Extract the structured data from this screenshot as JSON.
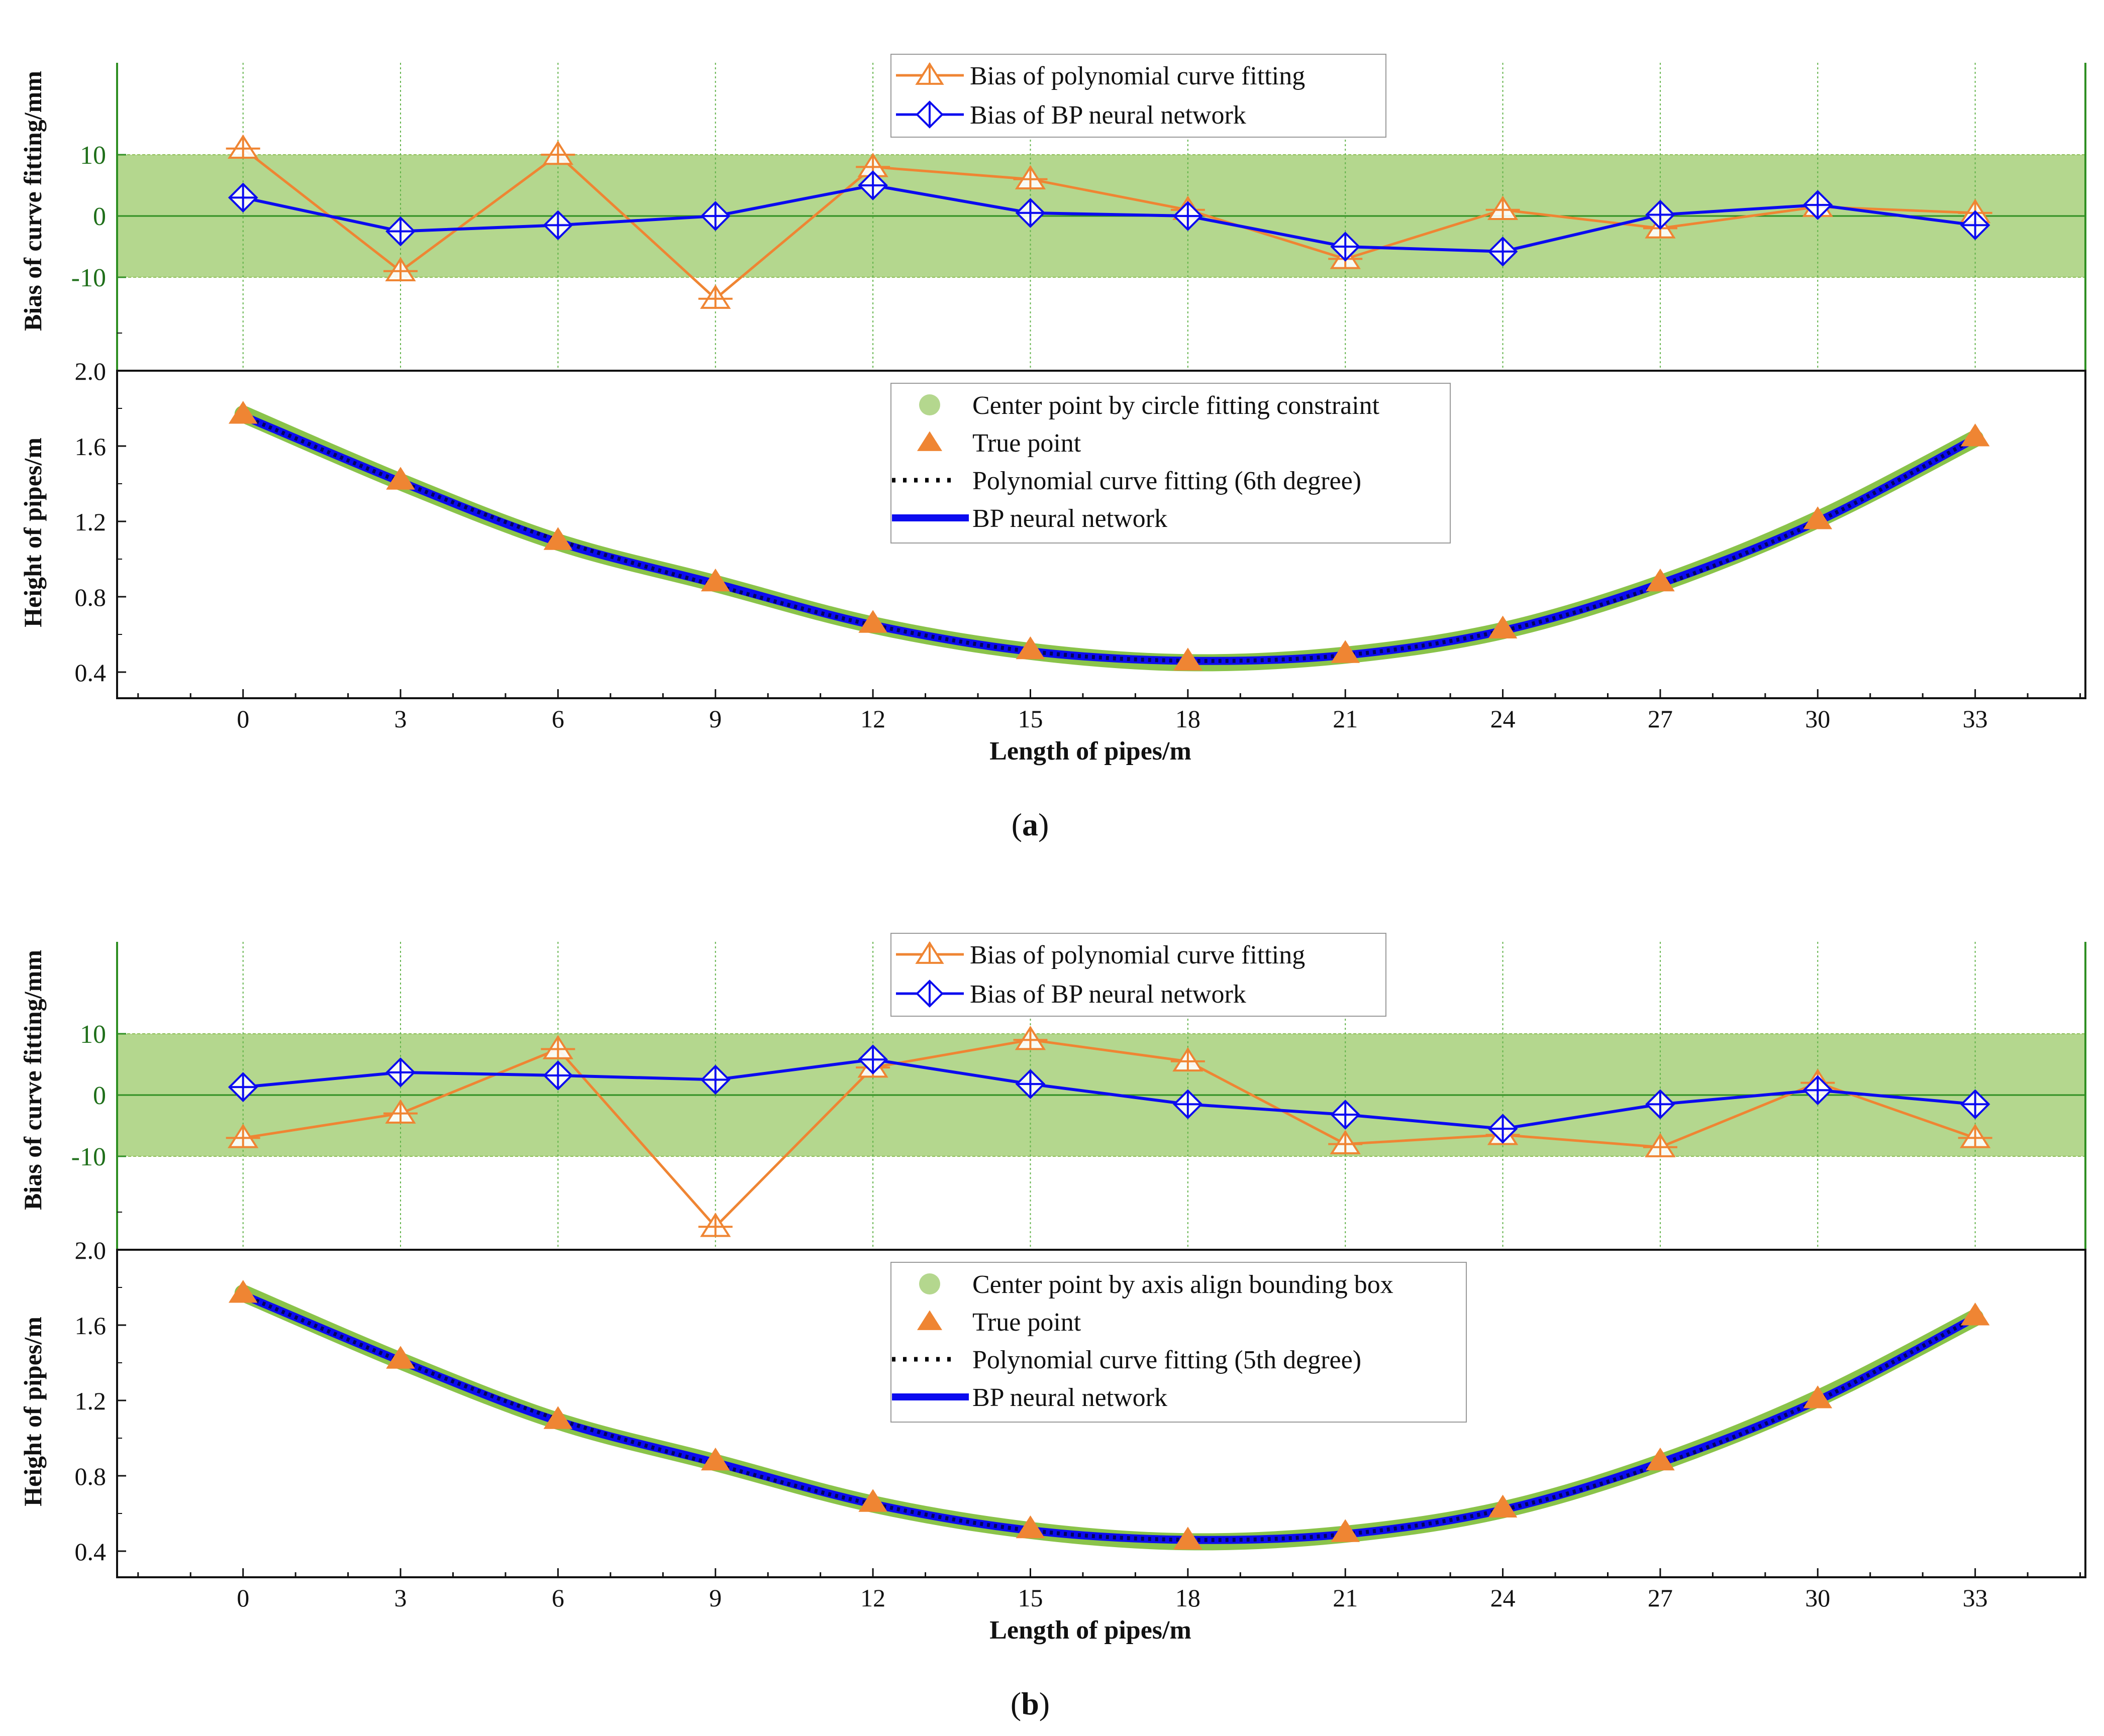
{
  "colors": {
    "orange": "#ef8533",
    "blue": "#0b0bef",
    "band": "#b4d78e",
    "band_edge": "#8dbf55",
    "green_axis": "#2f8f23",
    "grid": "#62b34a",
    "dots": "#8ac34a",
    "text_green": "#1f6f1a"
  },
  "chart_data": [
    {
      "id": "a",
      "caption_label": "a",
      "type": "line",
      "top": {
        "ylabel": "Bias of curve fitting/mm",
        "ylim": [
          -25,
          25
        ],
        "yticks": [
          10,
          0,
          -10
        ],
        "band": [
          -10,
          10
        ],
        "series": [
          {
            "name": "Bias of polynomial curve fitting",
            "marker": "triangle",
            "x": [
              0,
              3,
              6,
              9,
              12,
              15,
              18,
              21,
              24,
              27,
              30,
              33
            ],
            "values": [
              11,
              -9,
              10,
              -13.5,
              8,
              6,
              1,
              -7,
              1,
              -2,
              1.5,
              0.5
            ]
          },
          {
            "name": "Bias of BP neural network",
            "marker": "diamond",
            "x": [
              0,
              3,
              6,
              9,
              12,
              15,
              18,
              21,
              24,
              27,
              30,
              33
            ],
            "values": [
              3,
              -2.5,
              -1.5,
              0,
              5,
              0.5,
              0,
              -5,
              -5.8,
              0.2,
              1.8,
              -1.5
            ]
          }
        ]
      },
      "bottom": {
        "ylabel": "Height of pipes/m",
        "xlabel": "Length of pipes/m",
        "ylim": [
          0.27,
          2.0
        ],
        "yticks": [
          "0.4",
          "0.8",
          "1.2",
          "1.6",
          "2.0"
        ],
        "xlim": [
          -2.4,
          35.1
        ],
        "xticks": [
          0,
          3,
          6,
          9,
          12,
          15,
          18,
          21,
          24,
          27,
          30,
          33
        ],
        "series": [
          {
            "name": "Center point by circle fitting constraint",
            "style": "dots",
            "x": [
              0,
              3,
              6,
              9,
              12,
              15,
              18,
              21,
              24,
              27,
              30,
              33
            ],
            "values": [
              1.77,
              1.41,
              1.09,
              0.87,
              0.65,
              0.51,
              0.45,
              0.49,
              0.62,
              0.87,
              1.21,
              1.64
            ]
          },
          {
            "name": "True point",
            "style": "triangles",
            "x": [
              0,
              3,
              6,
              9,
              12,
              15,
              18,
              21,
              24,
              27,
              30,
              33
            ],
            "values": [
              1.77,
              1.42,
              1.1,
              0.88,
              0.66,
              0.52,
              0.46,
              0.5,
              0.63,
              0.88,
              1.21,
              1.65
            ]
          },
          {
            "name": "Polynomial curve fitting (6th degree)",
            "style": "dotted",
            "x": [
              0,
              3,
              6,
              9,
              12,
              15,
              18,
              21,
              24,
              27,
              30,
              33
            ],
            "values": [
              1.76,
              1.41,
              1.1,
              0.86,
              0.65,
              0.51,
              0.46,
              0.49,
              0.62,
              0.86,
              1.2,
              1.64
            ]
          },
          {
            "name": "BP neural network",
            "style": "thick",
            "x": [
              0,
              3,
              6,
              9,
              12,
              15,
              18,
              21,
              24,
              27,
              30,
              33
            ],
            "values": [
              1.76,
              1.41,
              1.09,
              0.87,
              0.65,
              0.51,
              0.46,
              0.49,
              0.62,
              0.87,
              1.2,
              1.64
            ]
          }
        ]
      }
    },
    {
      "id": "b",
      "caption_label": "b",
      "type": "line",
      "top": {
        "ylabel": "Bias of curve fitting/mm",
        "ylim": [
          -25,
          25
        ],
        "yticks": [
          10,
          0,
          -10
        ],
        "band": [
          -10,
          10
        ],
        "series": [
          {
            "name": "Bias of polynomial curve fitting",
            "marker": "triangle",
            "x": [
              0,
              3,
              6,
              9,
              12,
              15,
              18,
              21,
              24,
              27,
              30,
              33
            ],
            "values": [
              -7,
              -3,
              7.5,
              -21.5,
              4.5,
              9,
              5.5,
              -8,
              -6.5,
              -8.5,
              2,
              -7
            ]
          },
          {
            "name": "Bias of BP neural network",
            "marker": "diamond",
            "x": [
              0,
              3,
              6,
              9,
              12,
              15,
              18,
              21,
              24,
              27,
              30,
              33
            ],
            "values": [
              1.3,
              3.7,
              3.2,
              2.5,
              5.8,
              1.8,
              -1.5,
              -3.2,
              -5.5,
              -1.5,
              0.8,
              -1.5
            ]
          }
        ]
      },
      "bottom": {
        "ylabel": "Height of pipes/m",
        "xlabel": "Length of pipes/m",
        "ylim": [
          0.27,
          2.0
        ],
        "yticks": [
          "0.4",
          "0.8",
          "1.2",
          "1.6",
          "2.0"
        ],
        "xlim": [
          -2.4,
          35.1
        ],
        "xticks": [
          0,
          3,
          6,
          9,
          12,
          15,
          18,
          21,
          24,
          27,
          30,
          33
        ],
        "series": [
          {
            "name": "Center point by axis align bounding box",
            "style": "dots",
            "x": [
              0,
              3,
              6,
              9,
              12,
              15,
              18,
              21,
              24,
              27,
              30,
              33
            ],
            "values": [
              1.77,
              1.41,
              1.09,
              0.87,
              0.65,
              0.51,
              0.45,
              0.49,
              0.62,
              0.87,
              1.21,
              1.64
            ]
          },
          {
            "name": "True point",
            "style": "triangles",
            "x": [
              0,
              3,
              6,
              9,
              12,
              15,
              18,
              21,
              24,
              27,
              30,
              33
            ],
            "values": [
              1.77,
              1.42,
              1.1,
              0.88,
              0.66,
              0.52,
              0.46,
              0.5,
              0.63,
              0.88,
              1.21,
              1.65
            ]
          },
          {
            "name": "Polynomial curve fitting (5th degree)",
            "style": "dotted",
            "x": [
              0,
              3,
              6,
              9,
              12,
              15,
              18,
              21,
              24,
              27,
              30,
              33
            ],
            "values": [
              1.76,
              1.41,
              1.1,
              0.86,
              0.65,
              0.51,
              0.46,
              0.49,
              0.62,
              0.86,
              1.2,
              1.64
            ]
          },
          {
            "name": "BP neural network",
            "style": "thick",
            "x": [
              0,
              3,
              6,
              9,
              12,
              15,
              18,
              21,
              24,
              27,
              30,
              33
            ],
            "values": [
              1.76,
              1.41,
              1.09,
              0.87,
              0.65,
              0.51,
              0.46,
              0.49,
              0.62,
              0.87,
              1.2,
              1.64
            ]
          }
        ]
      }
    }
  ]
}
